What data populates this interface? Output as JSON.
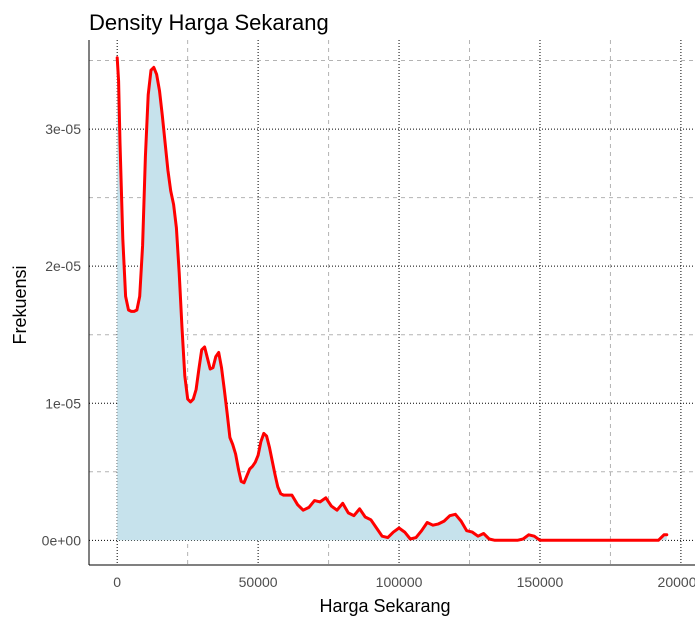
{
  "chart_data": {
    "type": "area",
    "title": "Density Harga Sekarang",
    "xlabel": "Harga Sekarang",
    "ylabel": "Frekuensi",
    "xlim": [
      -10000,
      205000
    ],
    "ylim": [
      -1.8e-06,
      3.65e-05
    ],
    "x_ticks": [
      0,
      50000,
      100000,
      150000,
      200000
    ],
    "x_tick_labels": [
      "0",
      "50000",
      "100000",
      "150000",
      "200000"
    ],
    "y_ticks": [
      0,
      1e-05,
      2e-05,
      3e-05
    ],
    "y_tick_labels": [
      "0e+00",
      "1e-05",
      "2e-05",
      "3e-05"
    ],
    "x_minor_ticks": [
      25000,
      75000,
      125000,
      175000
    ],
    "y_minor_ticks": [
      5e-06,
      1.5e-05,
      2.5e-05,
      3.5e-05
    ],
    "grid": true,
    "legend": false,
    "colors": {
      "fill": "#c6e2ec",
      "line": "#ff0000",
      "grid": "#b3b3b3",
      "axis": "#000000"
    },
    "series": [
      {
        "x": [
          0,
          500,
          1000,
          2000,
          3000,
          4000,
          5000,
          6000,
          7000,
          8000,
          9000,
          10000,
          11000,
          12000,
          13000,
          14000,
          15000,
          16000,
          17000,
          18000,
          19000,
          20000,
          21000,
          22000,
          23000,
          24000,
          25000,
          26000,
          27000,
          28000,
          29000,
          30000,
          31000,
          32000,
          33000,
          34000,
          35000,
          36000,
          37000,
          38000,
          39000,
          40000,
          41000,
          42000,
          43000,
          44000,
          45000,
          46000,
          47000,
          48000,
          49000,
          50000,
          51000,
          52000,
          53000,
          54000,
          55000,
          56000,
          57000,
          58000,
          59000,
          60000,
          62000,
          64000,
          66000,
          68000,
          70000,
          72000,
          74000,
          76000,
          78000,
          80000,
          82000,
          84000,
          86000,
          88000,
          90000,
          92000,
          94000,
          96000,
          98000,
          100000,
          102000,
          104000,
          106000,
          108000,
          110000,
          112000,
          114000,
          116000,
          118000,
          120000,
          122000,
          124000,
          126000,
          128000,
          130000,
          132000,
          134000,
          136000,
          138000,
          140000,
          142000,
          144000,
          146000,
          148000,
          150000,
          160000,
          170000,
          180000,
          190000,
          192000,
          193000,
          194000,
          195000
        ],
        "y": [
          3.52e-05,
          3.35e-05,
          2.9e-05,
          2.2e-05,
          1.78e-05,
          1.68e-05,
          1.67e-05,
          1.67e-05,
          1.68e-05,
          1.78e-05,
          2.15e-05,
          2.8e-05,
          3.25e-05,
          3.43e-05,
          3.45e-05,
          3.4e-05,
          3.28e-05,
          3.1e-05,
          2.9e-05,
          2.7e-05,
          2.55e-05,
          2.45e-05,
          2.28e-05,
          1.95e-05,
          1.55e-05,
          1.2e-05,
          1.03e-05,
          1.01e-05,
          1.03e-05,
          1.1e-05,
          1.25e-05,
          1.39e-05,
          1.41e-05,
          1.33e-05,
          1.25e-05,
          1.26e-05,
          1.34e-05,
          1.37e-05,
          1.26e-05,
          1.1e-05,
          9.3e-06,
          7.5e-06,
          7e-06,
          6.3e-06,
          5.2e-06,
          4.3e-06,
          4.2e-06,
          4.7e-06,
          5.2e-06,
          5.4e-06,
          5.7e-06,
          6.2e-06,
          7.2e-06,
          7.8e-06,
          7.6e-06,
          6.8e-06,
          5.8e-06,
          4.8e-06,
          3.9e-06,
          3.4e-06,
          3.3e-06,
          3.3e-06,
          3.3e-06,
          2.6e-06,
          2.2e-06,
          2.4e-06,
          2.9e-06,
          2.8e-06,
          3.1e-06,
          2.5e-06,
          2.2e-06,
          2.7e-06,
          2e-06,
          1.8e-06,
          2.3e-06,
          1.7e-06,
          1.5e-06,
          9e-07,
          3e-07,
          2e-07,
          6e-07,
          9e-07,
          6e-07,
          1e-07,
          2e-07,
          7e-07,
          1.3e-06,
          1.1e-06,
          1.2e-06,
          1.4e-06,
          1.8e-06,
          1.9e-06,
          1.4e-06,
          7e-07,
          6e-07,
          3e-07,
          5e-07,
          1e-07,
          0,
          0,
          0,
          0,
          0,
          1e-07,
          4e-07,
          3e-07,
          0,
          0,
          0,
          0,
          0,
          0,
          2e-07,
          4e-07,
          4e-07
        ]
      }
    ]
  }
}
